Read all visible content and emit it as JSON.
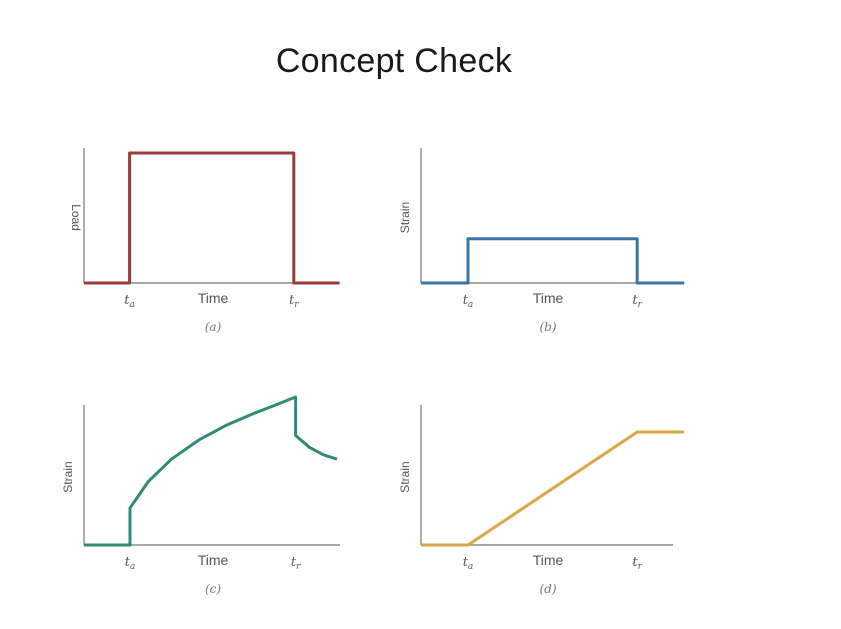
{
  "slide": {
    "title": "Concept Check"
  },
  "chart_data": [
    {
      "id": "a",
      "type": "line",
      "caption": "(a)",
      "xlabel": "Time",
      "ylabel": "Load",
      "xticks": [
        "t_a",
        "t_r"
      ],
      "tick_labels": [
        "ta",
        "tr"
      ],
      "color": "#9b3a3a",
      "x": [
        0,
        1,
        1,
        4.6,
        4.6,
        5.6
      ],
      "y": [
        0,
        0,
        1,
        1,
        0,
        0
      ]
    },
    {
      "id": "b",
      "type": "line",
      "caption": "(b)",
      "xlabel": "Time",
      "ylabel": "Strain",
      "xticks": [
        "t_a",
        "t_r"
      ],
      "tick_labels": [
        "ta",
        "tr"
      ],
      "color": "#3a75a8",
      "x": [
        0,
        1,
        1,
        4.6,
        4.6,
        5.6
      ],
      "y": [
        0,
        0,
        0.34,
        0.34,
        0,
        0
      ]
    },
    {
      "id": "c",
      "type": "line",
      "caption": "(c)",
      "xlabel": "Time",
      "ylabel": "Strain",
      "xticks": [
        "t_a",
        "t_r"
      ],
      "tick_labels": [
        "ta",
        "tr"
      ],
      "color": "#2f8a77",
      "x": [
        0,
        1,
        1,
        1.4,
        1.9,
        2.5,
        3.1,
        3.7,
        4.2,
        4.6,
        4.6,
        4.9,
        5.2,
        5.5
      ],
      "y": [
        0,
        0,
        0.25,
        0.43,
        0.58,
        0.71,
        0.81,
        0.89,
        0.95,
        1.0,
        0.74,
        0.66,
        0.61,
        0.58
      ]
    },
    {
      "id": "d",
      "type": "line",
      "caption": "(d)",
      "xlabel": "Time",
      "ylabel": "Strain",
      "xticks": [
        "t_a",
        "t_r"
      ],
      "tick_labels": [
        "ta",
        "tr"
      ],
      "color": "#d9a74a",
      "x": [
        0,
        1,
        4.6,
        5.6
      ],
      "y": [
        0,
        0,
        1,
        1
      ]
    }
  ]
}
